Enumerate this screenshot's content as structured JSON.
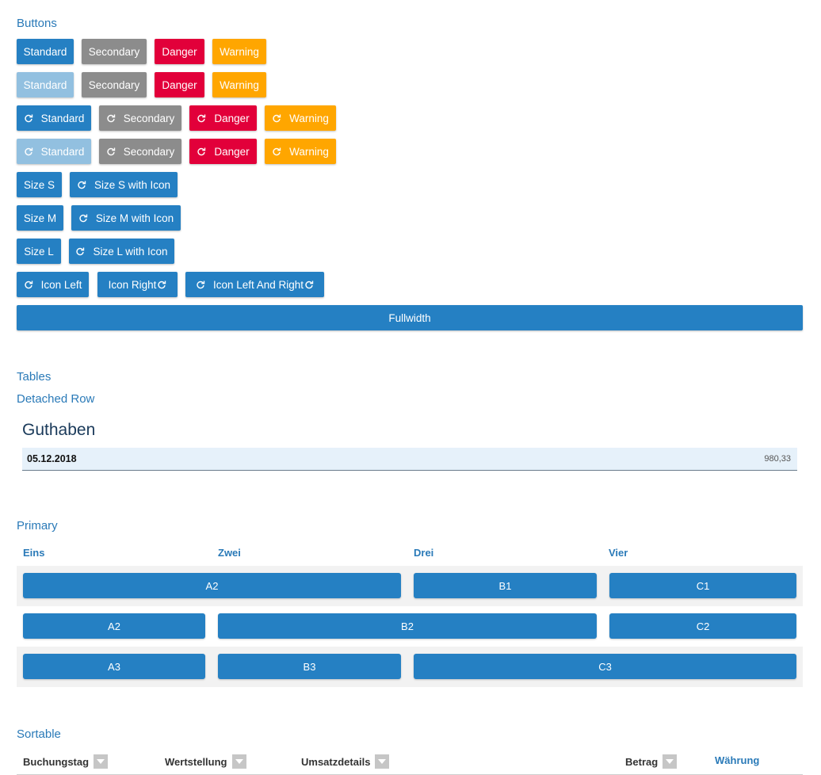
{
  "sections": {
    "buttons": "Buttons",
    "tables": "Tables",
    "detached_row": "Detached Row",
    "primary": "Primary",
    "sortable": "Sortable"
  },
  "buttons": {
    "standard": "Standard",
    "secondary": "Secondary",
    "danger": "Danger",
    "warning": "Warning",
    "size_s": "Size S",
    "size_s_icon": "Size S with Icon",
    "size_m": "Size M",
    "size_m_icon": "Size M with Icon",
    "size_l": "Size L",
    "size_l_icon": "Size L with Icon",
    "icon_left": "Icon Left",
    "icon_right": "Icon Right",
    "icon_left_right": "Icon Left And Right",
    "fullwidth": "Fullwidth"
  },
  "detached": {
    "title": "Guthaben",
    "date": "05.12.2018",
    "amount": "980,33"
  },
  "primary_table": {
    "headers": [
      "Eins",
      "Zwei",
      "Drei",
      "Vier"
    ],
    "rows": [
      [
        "A2",
        "B1",
        "C1"
      ],
      [
        "A2",
        "B2",
        "C2"
      ],
      [
        "A3",
        "B3",
        "C3"
      ]
    ]
  },
  "sortable_table": {
    "headers": [
      "Buchungstag",
      "Wertstellung",
      "Umsatzdetails",
      "Betrag",
      "Währung"
    ]
  },
  "colors": {
    "primary": "#2580c3",
    "secondary": "#8c8c8c",
    "danger": "#e2003a",
    "warning": "#ffa600",
    "heading": "#2a7ab8"
  },
  "icons": {
    "button_icon": "refresh-icon",
    "sort_icon": "sort-down-icon"
  }
}
